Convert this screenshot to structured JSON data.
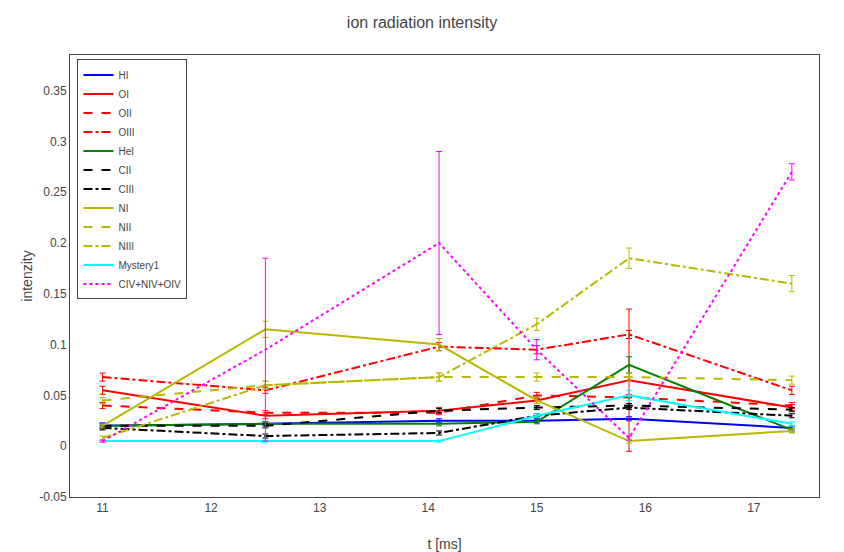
{
  "chart_data": {
    "type": "line",
    "title": "ion radiation intensity",
    "xlabel": "t [ms]",
    "ylabel": "intenzity",
    "xlim": [
      10.7,
      17.6
    ],
    "ylim": [
      -0.05,
      0.385
    ],
    "xticks": [
      11,
      12,
      13,
      14,
      15,
      16,
      17
    ],
    "yticks": [
      -0.05,
      0,
      0.05,
      0.1,
      0.15,
      0.2,
      0.25,
      0.3,
      0.35
    ],
    "grid": false,
    "legend": "upper left",
    "x": [
      11.0,
      12.5,
      14.1,
      15.0,
      15.85,
      17.35
    ],
    "series": [
      {
        "name": "HI",
        "color": "blue",
        "line_style": "solid",
        "values": [
          0.02,
          0.022,
          0.025,
          0.025,
          0.027,
          0.018
        ],
        "errors": [
          0.003,
          0.002,
          0.002,
          0.002,
          0.002,
          0.002
        ]
      },
      {
        "name": "OI",
        "color": "red",
        "line_style": "solid",
        "values": [
          0.055,
          0.03,
          0.035,
          0.045,
          0.065,
          0.038
        ],
        "errors": [
          0.004,
          0.003,
          0.003,
          0.003,
          0.07,
          0.003
        ]
      },
      {
        "name": "OII",
        "color": "red",
        "line_style": "dashed",
        "values": [
          0.04,
          0.033,
          0.033,
          0.05,
          0.048,
          0.04
        ],
        "errors": [
          0.003,
          0.002,
          0.002,
          0.003,
          0.003,
          0.003
        ]
      },
      {
        "name": "OIII",
        "color": "red",
        "line_style": "dashdot",
        "values": [
          0.068,
          0.055,
          0.098,
          0.095,
          0.11,
          0.055
        ],
        "errors": [
          0.004,
          0.003,
          0.004,
          0.004,
          0.004,
          0.004
        ]
      },
      {
        "name": "HeI",
        "color": "green",
        "line_style": "solid",
        "values": [
          0.02,
          0.022,
          0.022,
          0.024,
          0.08,
          0.016
        ],
        "errors": [
          0.002,
          0.002,
          0.002,
          0.002,
          0.008,
          0.002
        ]
      },
      {
        "name": "CII",
        "color": "black",
        "line_style": "dashed",
        "values": [
          0.02,
          0.02,
          0.035,
          0.038,
          0.04,
          0.036
        ],
        "errors": [
          0.002,
          0.002,
          0.002,
          0.002,
          0.002,
          0.002
        ]
      },
      {
        "name": "CIII",
        "color": "black",
        "line_style": "dashdot",
        "values": [
          0.018,
          0.01,
          0.013,
          0.03,
          0.038,
          0.03
        ],
        "errors": [
          0.002,
          0.002,
          0.002,
          0.002,
          0.002,
          0.002
        ]
      },
      {
        "name": "NI",
        "color": "#b8b800",
        "line_style": "solid",
        "values": [
          0.02,
          0.115,
          0.1,
          0.045,
          0.005,
          0.015
        ],
        "errors": [
          0.002,
          0.008,
          0.006,
          0.003,
          0.002,
          0.002
        ]
      },
      {
        "name": "NII",
        "color": "#b8b800",
        "line_style": "dashed",
        "values": [
          0.045,
          0.06,
          0.068,
          0.068,
          0.068,
          0.065
        ],
        "errors": [
          0.003,
          0.004,
          0.004,
          0.004,
          0.004,
          0.004
        ]
      },
      {
        "name": "NIII",
        "color": "#b8b800",
        "line_style": "dashdot",
        "values": [
          0.008,
          0.06,
          0.068,
          0.12,
          0.185,
          0.16
        ],
        "errors": [
          0.002,
          0.004,
          0.004,
          0.006,
          0.01,
          0.008
        ]
      },
      {
        "name": "Mystery1",
        "color": "cyan",
        "line_style": "solid",
        "values": [
          0.005,
          0.005,
          0.005,
          0.03,
          0.05,
          0.022
        ],
        "errors": [
          0.001,
          0.001,
          0.001,
          0.002,
          0.005,
          0.002
        ]
      },
      {
        "name": "CIV+NIV+OIV",
        "color": "magenta",
        "line_style": "dotted",
        "values": [
          0.005,
          0.095,
          0.2,
          0.095,
          0.008,
          0.27
        ],
        "errors": [
          0.001,
          0.09,
          0.09,
          0.01,
          0.002,
          0.008
        ]
      }
    ]
  }
}
